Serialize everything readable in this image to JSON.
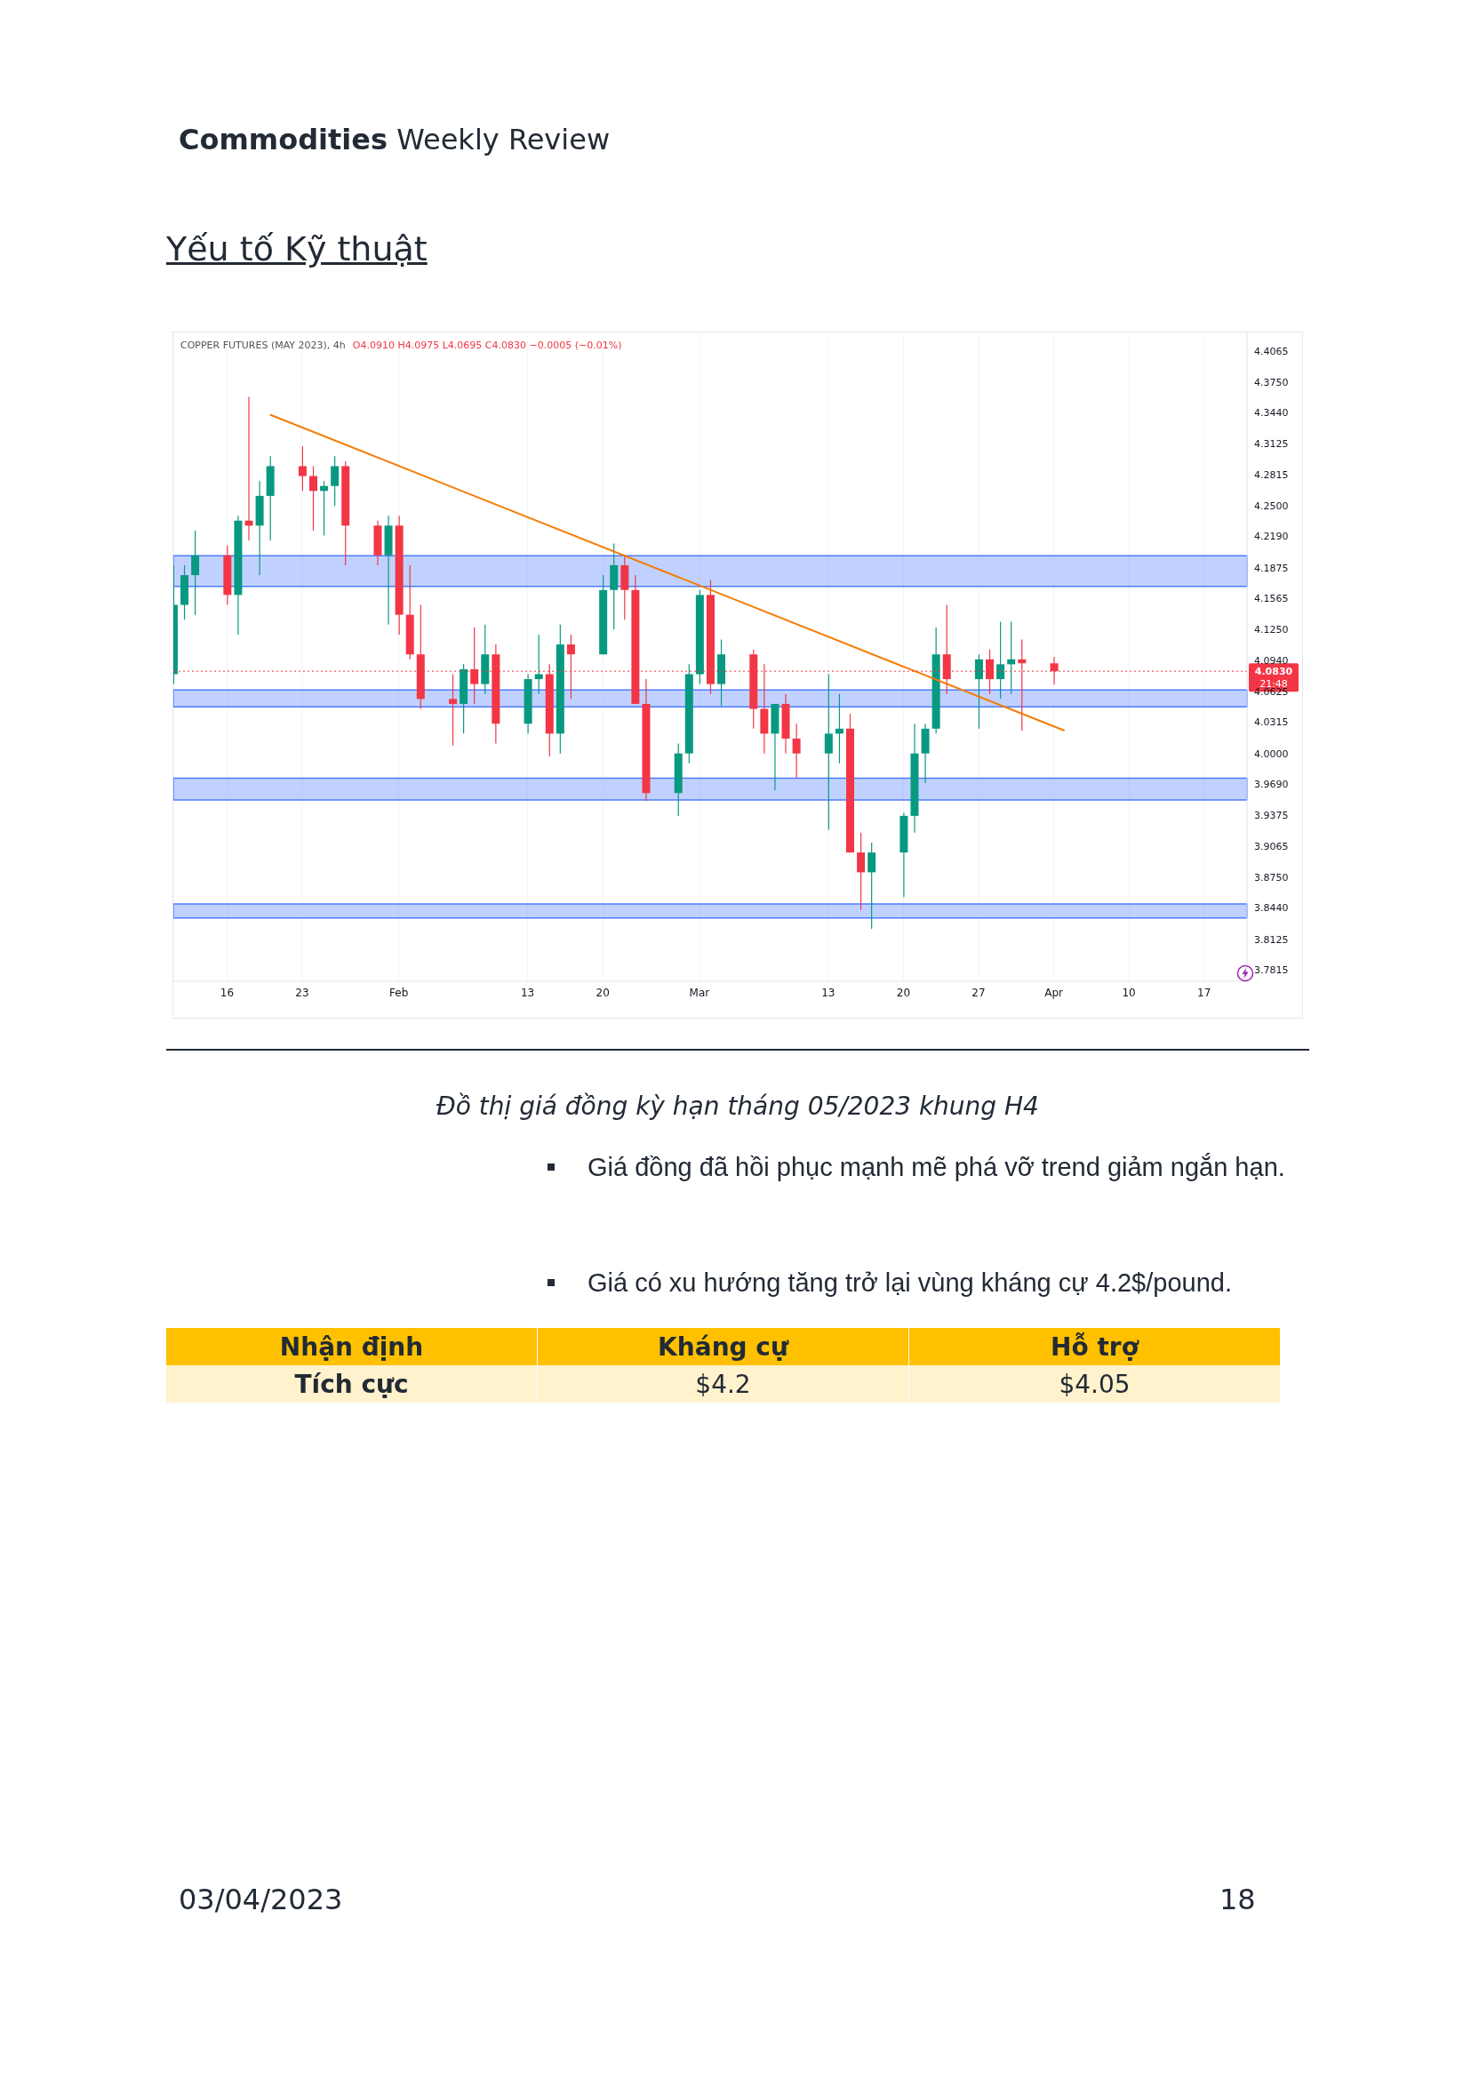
{
  "chart_data": {
    "type": "candlestick",
    "title": "COPPER FUTURES (MAY 2023), 4h",
    "subtitle": "O4.0910 H4.0975 L4.0695 C4.0830 −0.0005 (−0.01%)",
    "x": [
      "2023-01-11",
      "2023-01-12",
      "2023-01-13",
      "2023-01-16",
      "2023-01-17",
      "2023-01-18",
      "2023-01-19",
      "2023-01-20",
      "2023-01-23",
      "2023-01-24",
      "2023-01-25",
      "2023-01-26",
      "2023-01-27",
      "2023-01-30",
      "2023-01-31",
      "2023-02-01",
      "2023-02-02",
      "2023-02-03",
      "2023-02-06",
      "2023-02-07",
      "2023-02-08",
      "2023-02-09",
      "2023-02-10",
      "2023-02-13",
      "2023-02-14",
      "2023-02-15",
      "2023-02-16",
      "2023-02-17",
      "2023-02-20",
      "2023-02-21",
      "2023-02-22",
      "2023-02-23",
      "2023-02-24",
      "2023-02-27",
      "2023-02-28",
      "2023-03-01",
      "2023-03-02",
      "2023-03-03",
      "2023-03-06",
      "2023-03-07",
      "2023-03-08",
      "2023-03-09",
      "2023-03-10",
      "2023-03-13",
      "2023-03-14",
      "2023-03-15",
      "2023-03-16",
      "2023-03-17",
      "2023-03-20",
      "2023-03-21",
      "2023-03-22",
      "2023-03-23",
      "2023-03-24",
      "2023-03-27",
      "2023-03-28",
      "2023-03-29",
      "2023-03-30",
      "2023-03-31",
      "2023-04-03"
    ],
    "ohlc": [
      [
        4.08,
        4.19,
        4.07,
        4.15
      ],
      [
        4.15,
        4.19,
        4.135,
        4.18
      ],
      [
        4.18,
        4.225,
        4.14,
        4.2
      ],
      [
        4.2,
        4.21,
        4.15,
        4.16
      ],
      [
        4.16,
        4.24,
        4.12,
        4.235
      ],
      [
        4.235,
        4.36,
        4.215,
        4.23
      ],
      [
        4.23,
        4.275,
        4.18,
        4.26
      ],
      [
        4.26,
        4.3,
        4.215,
        4.29
      ],
      [
        4.29,
        4.31,
        4.265,
        4.28
      ],
      [
        4.28,
        4.29,
        4.225,
        4.265
      ],
      [
        4.265,
        4.275,
        4.22,
        4.27
      ],
      [
        4.27,
        4.3,
        4.25,
        4.29
      ],
      [
        4.29,
        4.295,
        4.19,
        4.23
      ],
      [
        4.23,
        4.235,
        4.19,
        4.2
      ],
      [
        4.2,
        4.24,
        4.13,
        4.23
      ],
      [
        4.23,
        4.24,
        4.12,
        4.14
      ],
      [
        4.14,
        4.19,
        4.095,
        4.1
      ],
      [
        4.1,
        4.15,
        4.045,
        4.055
      ],
      [
        4.055,
        4.08,
        4.008,
        4.05
      ],
      [
        4.05,
        4.09,
        4.02,
        4.085
      ],
      [
        4.085,
        4.127,
        4.05,
        4.07
      ],
      [
        4.07,
        4.13,
        4.06,
        4.1
      ],
      [
        4.1,
        4.11,
        4.01,
        4.03
      ],
      [
        4.03,
        4.08,
        4.02,
        4.075
      ],
      [
        4.075,
        4.12,
        4.06,
        4.08
      ],
      [
        4.08,
        4.09,
        3.997,
        4.02
      ],
      [
        4.02,
        4.13,
        4.0,
        4.11
      ],
      [
        4.11,
        4.12,
        4.055,
        4.1
      ],
      [
        4.1,
        4.18,
        4.1,
        4.165
      ],
      [
        4.165,
        4.212,
        4.125,
        4.19
      ],
      [
        4.19,
        4.2,
        4.135,
        4.165
      ],
      [
        4.165,
        4.18,
        4.05,
        4.05
      ],
      [
        4.05,
        4.075,
        3.952,
        3.96
      ],
      [
        3.96,
        4.01,
        3.937,
        4.0
      ],
      [
        4.0,
        4.09,
        3.99,
        4.08
      ],
      [
        4.08,
        4.165,
        4.07,
        4.16
      ],
      [
        4.16,
        4.175,
        4.06,
        4.07
      ],
      [
        4.07,
        4.115,
        4.048,
        4.1
      ],
      [
        4.1,
        4.105,
        4.025,
        4.045
      ],
      [
        4.045,
        4.09,
        4.0,
        4.02
      ],
      [
        4.02,
        4.05,
        3.963,
        4.05
      ],
      [
        4.05,
        4.06,
        4.0,
        4.015
      ],
      [
        4.015,
        4.03,
        3.975,
        4.0
      ],
      [
        4.0,
        4.08,
        3.923,
        4.02
      ],
      [
        4.02,
        4.06,
        3.99,
        4.025
      ],
      [
        4.025,
        4.04,
        3.9,
        3.9
      ],
      [
        3.9,
        3.92,
        3.842,
        3.88
      ],
      [
        3.88,
        3.91,
        3.823,
        3.9
      ],
      [
        3.9,
        3.94,
        3.855,
        3.937
      ],
      [
        3.937,
        4.03,
        3.92,
        4.0
      ],
      [
        4.0,
        4.03,
        3.97,
        4.025
      ],
      [
        4.025,
        4.127,
        4.02,
        4.1
      ],
      [
        4.1,
        4.15,
        4.06,
        4.075
      ],
      [
        4.075,
        4.1,
        4.025,
        4.095
      ],
      [
        4.095,
        4.105,
        4.06,
        4.075
      ],
      [
        4.075,
        4.133,
        4.055,
        4.09
      ],
      [
        4.09,
        4.133,
        4.06,
        4.095
      ],
      [
        4.095,
        4.115,
        4.023,
        4.091
      ],
      [
        4.091,
        4.0975,
        4.0695,
        4.083
      ]
    ],
    "colors": [
      "#089981",
      "#089981",
      "#089981",
      "#f23645",
      "#089981",
      "#f23645",
      "#089981",
      "#089981",
      "#f23645",
      "#f23645",
      "#089981",
      "#089981",
      "#f23645",
      "#f23645",
      "#089981",
      "#f23645",
      "#f23645",
      "#f23645",
      "#f23645",
      "#089981",
      "#f23645",
      "#089981",
      "#f23645",
      "#089981",
      "#089981",
      "#f23645",
      "#089981",
      "#f23645",
      "#089981",
      "#089981",
      "#f23645",
      "#f23645",
      "#f23645",
      "#089981",
      "#089981",
      "#089981",
      "#f23645",
      "#089981",
      "#f23645",
      "#f23645",
      "#089981",
      "#f23645",
      "#f23645",
      "#089981",
      "#089981",
      "#f23645",
      "#f23645",
      "#089981",
      "#089981",
      "#089981",
      "#089981",
      "#089981",
      "#f23645",
      "#089981",
      "#f23645",
      "#089981",
      "#089981",
      "#f23645",
      "#f23645"
    ],
    "series": [
      {
        "type": "line",
        "x": [
          "2023-01-20",
          "2023-04-04"
        ],
        "values": [
          4.342,
          4.023
        ],
        "color": "#f57c00"
      }
    ],
    "xlim": [
      "2023-01-11",
      "2023-04-21"
    ],
    "xticks": [
      {
        "value": "2023-01-16",
        "label": "16"
      },
      {
        "value": "2023-01-23",
        "label": "23"
      },
      {
        "value": "2023-02-01",
        "label": "Feb"
      },
      {
        "value": "2023-02-13",
        "label": "13"
      },
      {
        "value": "2023-02-20",
        "label": "20"
      },
      {
        "value": "2023-03-01",
        "label": "Mar"
      },
      {
        "value": "2023-03-13",
        "label": "13"
      },
      {
        "value": "2023-03-20",
        "label": "20"
      },
      {
        "value": "2023-03-27",
        "label": "27"
      },
      {
        "value": "2023-04-03",
        "label": "Apr"
      },
      {
        "value": "2023-04-10",
        "label": "10"
      },
      {
        "value": "2023-04-17",
        "label": "17"
      }
    ],
    "ylim": [
      3.77,
      4.425
    ],
    "yticks": [
      {
        "value": 4.4065,
        "label": "4.4065"
      },
      {
        "value": 4.375,
        "label": "4.3750"
      },
      {
        "value": 4.344,
        "label": "4.3440"
      },
      {
        "value": 4.3125,
        "label": "4.3125"
      },
      {
        "value": 4.2815,
        "label": "4.2815"
      },
      {
        "value": 4.25,
        "label": "4.2500"
      },
      {
        "value": 4.219,
        "label": "4.2190"
      },
      {
        "value": 4.1875,
        "label": "4.1875"
      },
      {
        "value": 4.1565,
        "label": "4.1565"
      },
      {
        "value": 4.125,
        "label": "4.1250"
      },
      {
        "value": 4.094,
        "label": "4.0940"
      },
      {
        "value": 4.0625,
        "label": "4.0625"
      },
      {
        "value": 4.0315,
        "label": "4.0315"
      },
      {
        "value": 4.0,
        "label": "4.0000"
      },
      {
        "value": 3.969,
        "label": "3.9690"
      },
      {
        "value": 3.9375,
        "label": "3.9375"
      },
      {
        "value": 3.9065,
        "label": "3.9065"
      },
      {
        "value": 3.875,
        "label": "3.8750"
      },
      {
        "value": 3.844,
        "label": "3.8440"
      },
      {
        "value": 3.8125,
        "label": "3.8125"
      },
      {
        "value": 3.7815,
        "label": "3.7815"
      }
    ],
    "grid": true,
    "bands": [
      {
        "axis": "y",
        "from": 4.1685,
        "to": 4.1995,
        "color": "#4d7cff"
      },
      {
        "axis": "y",
        "from": 4.047,
        "to": 4.064,
        "color": "#4d7cff"
      },
      {
        "axis": "y",
        "from": 3.953,
        "to": 3.975,
        "color": "#4d7cff"
      },
      {
        "axis": "y",
        "from": 3.834,
        "to": 3.848,
        "color": "#4d7cff"
      }
    ],
    "ref_lines": [
      {
        "axis": "y",
        "value": 4.083,
        "label": "4.0830",
        "color": "#f23645",
        "line_style": "dotted"
      }
    ],
    "annotations": [
      "Commodities",
      "Weekly Review",
      "Yếu tố Kỹ thuật",
      "Đồ thị giá đồng kỳ hạn tháng 05/2023 khung H4",
      "Giá đồng đã hồi phục mạnh mẽ phá vỡ trend giảm ngắn hạn.",
      "Giá có xu hướng tăng trở lại vùng kháng cự 4.2$/pound.",
      "Nhận định",
      "Kháng cự",
      "Hỗ trợ",
      "Tích cực",
      "$4.2",
      "$4.05",
      "03/04/2023",
      "18",
      "21:48"
    ]
  }
}
